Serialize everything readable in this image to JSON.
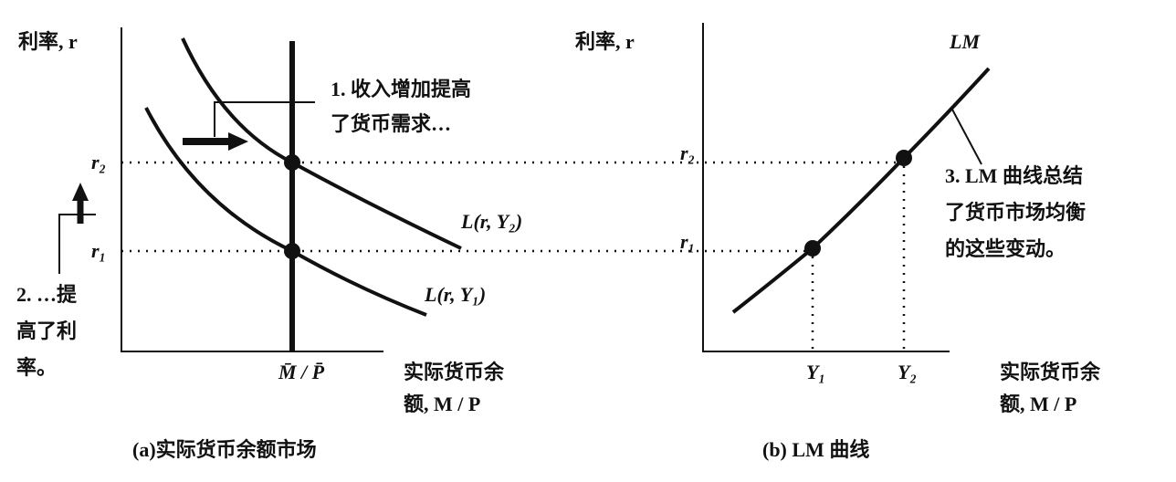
{
  "panel_a": {
    "y_axis_label": "利率, r",
    "r2": "r₂",
    "r1": "r₁",
    "money_supply_label": "M̄ / P̄",
    "x_axis_label": [
      "实际货币余",
      "额, M / P"
    ],
    "curve_high_income": "L(r, Y₂)",
    "curve_low_income": "L(r, Y₁)",
    "annotation_1": [
      "1. 收入增加提高",
      "了货币需求…"
    ],
    "annotation_2": [
      "2. …提",
      "高了利",
      "率。"
    ],
    "caption": "(a)实际货币余额市场"
  },
  "panel_b": {
    "y_axis_label": "利率, r",
    "r2": "r₂",
    "r1": "r₁",
    "curve_label": "LM",
    "y1": "Y₁",
    "y2": "Y₂",
    "x_axis_label": [
      "实际货币余",
      "额, M / P"
    ],
    "annotation_3": [
      "3. LM 曲线总结",
      "了货币市场均衡",
      "的这些变动。"
    ],
    "caption": "(b) LM 曲线"
  }
}
